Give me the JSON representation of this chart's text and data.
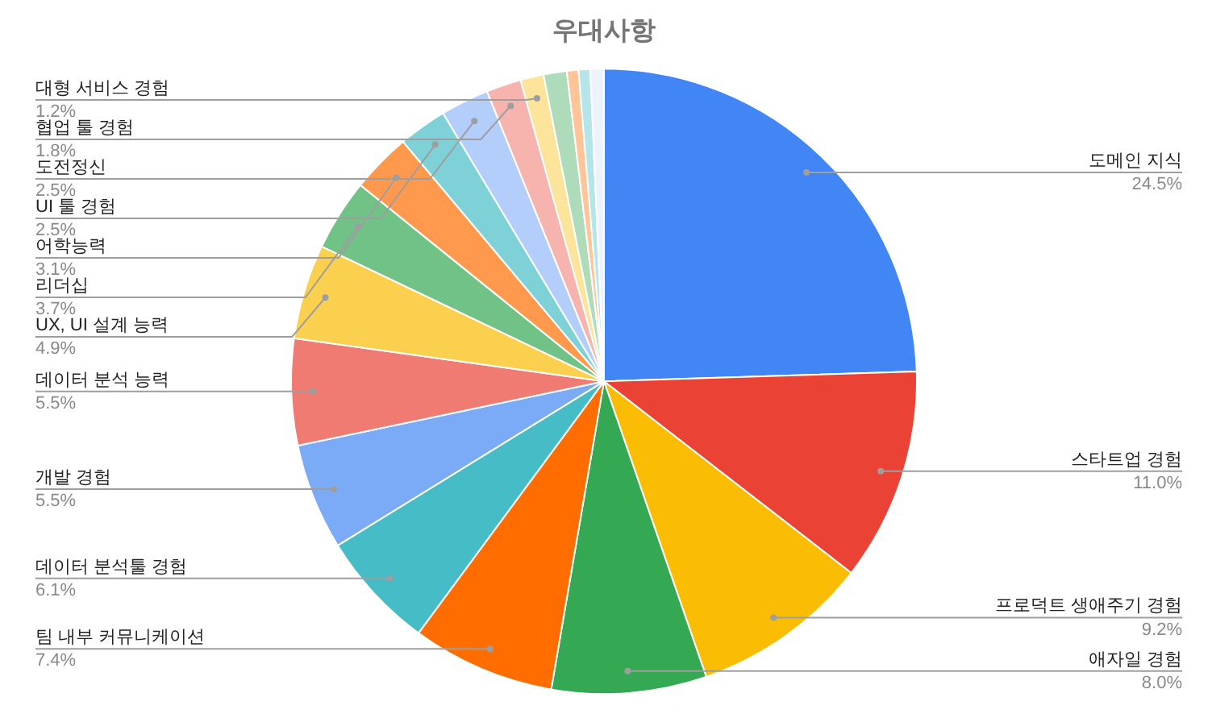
{
  "chart_data": {
    "type": "pie",
    "title": "우대사항",
    "categories": [
      "도메인 지식",
      "스타트업 경험",
      "프로덕트 생애주기 경험",
      "애자일 경험",
      "팀 내부 커뮤니케이션",
      "데이터 분석툴 경험",
      "개발 경험",
      "데이터 분석 능력",
      "UX, UI 설계 능력",
      "리더십",
      "어학능력",
      "UI 툴 경험",
      "도전정신",
      "협업 툴 경험",
      "대형 서비스 경험",
      null,
      null,
      null,
      null
    ],
    "values": [
      24.5,
      11.0,
      9.2,
      8.0,
      7.4,
      6.1,
      5.5,
      5.5,
      4.9,
      3.7,
      3.1,
      2.5,
      2.5,
      1.8,
      1.2,
      1.2,
      0.6,
      0.6,
      0.7
    ],
    "value_labels": [
      "24.5%",
      "11.0%",
      "9.2%",
      "8.0%",
      "7.4%",
      "6.1%",
      "5.5%",
      "5.5%",
      "4.9%",
      "3.7%",
      "3.1%",
      "2.5%",
      "2.5%",
      "1.8%",
      "1.2%",
      null,
      null,
      null,
      null
    ],
    "colors": [
      "#4285f4",
      "#ea4335",
      "#fbbc04",
      "#34a853",
      "#ff6d01",
      "#46bdc6",
      "#7baaf7",
      "#f07b72",
      "#fcd04f",
      "#71c287",
      "#ff994d",
      "#7ed1d7",
      "#b3cefb",
      "#f7b4ae",
      "#fde49b",
      "#aedcba",
      "#ffc599",
      "#b5e5e8",
      "#ecf3fe"
    ],
    "legend": false
  }
}
